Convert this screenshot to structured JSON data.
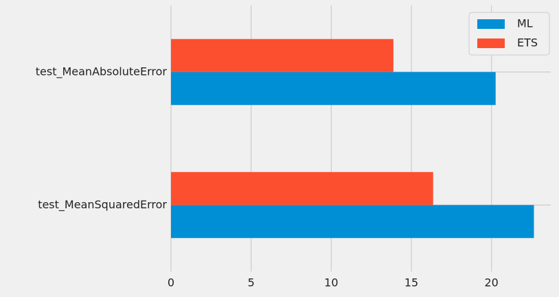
{
  "chart_data": {
    "type": "barh",
    "categories": [
      "test_MeanSquaredError",
      "test_MeanAbsoluteError"
    ],
    "series": [
      {
        "name": "ML",
        "color": "#008fd5",
        "values": [
          22.65,
          20.26
        ]
      },
      {
        "name": "ETS",
        "color": "#fc4f30",
        "values": [
          16.36,
          13.88
        ]
      }
    ],
    "xlim": [
      0,
      23.7
    ],
    "xticks": [
      0,
      5,
      10,
      15,
      20
    ],
    "grid": true,
    "legend": "upper right"
  }
}
